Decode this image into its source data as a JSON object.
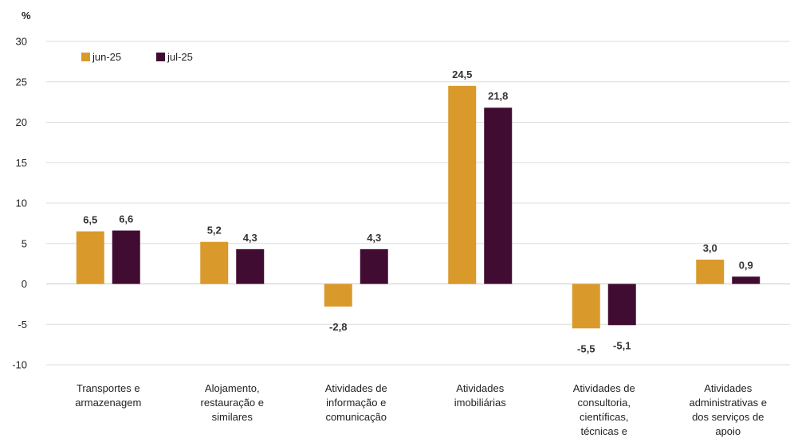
{
  "chart_data": {
    "type": "bar",
    "unit_label": "%",
    "categories": [
      [
        "Transportes e",
        "armazenagem"
      ],
      [
        "Alojamento,",
        "restauração e",
        "similares"
      ],
      [
        "Atividades de",
        "informação e",
        "comunicação"
      ],
      [
        "Atividades",
        "imobiliárias"
      ],
      [
        "Atividades de",
        "consultoria,",
        "científicas,",
        "técnicas e"
      ],
      [
        "Atividades",
        "administrativas e",
        "dos serviços de",
        "apoio"
      ]
    ],
    "series": [
      {
        "name": "jun-25",
        "color": "#d99a2b",
        "values": [
          6.5,
          5.2,
          -2.8,
          24.5,
          -5.5,
          3.0
        ],
        "labels": [
          "6,5",
          "5,2",
          "-2,8",
          "24,5",
          "-5,5",
          "3,0"
        ]
      },
      {
        "name": "jul-25",
        "color": "#410c31",
        "values": [
          6.6,
          4.3,
          4.3,
          21.8,
          -5.1,
          0.9
        ],
        "labels": [
          "6,6",
          "4,3",
          "4,3",
          "21,8",
          "-5,1",
          "0,9"
        ]
      }
    ],
    "ylim": [
      -10,
      30
    ],
    "yticks": [
      30,
      25,
      20,
      15,
      10,
      5,
      0,
      -5,
      -10
    ],
    "grid": true,
    "legend_position": "top-left"
  }
}
